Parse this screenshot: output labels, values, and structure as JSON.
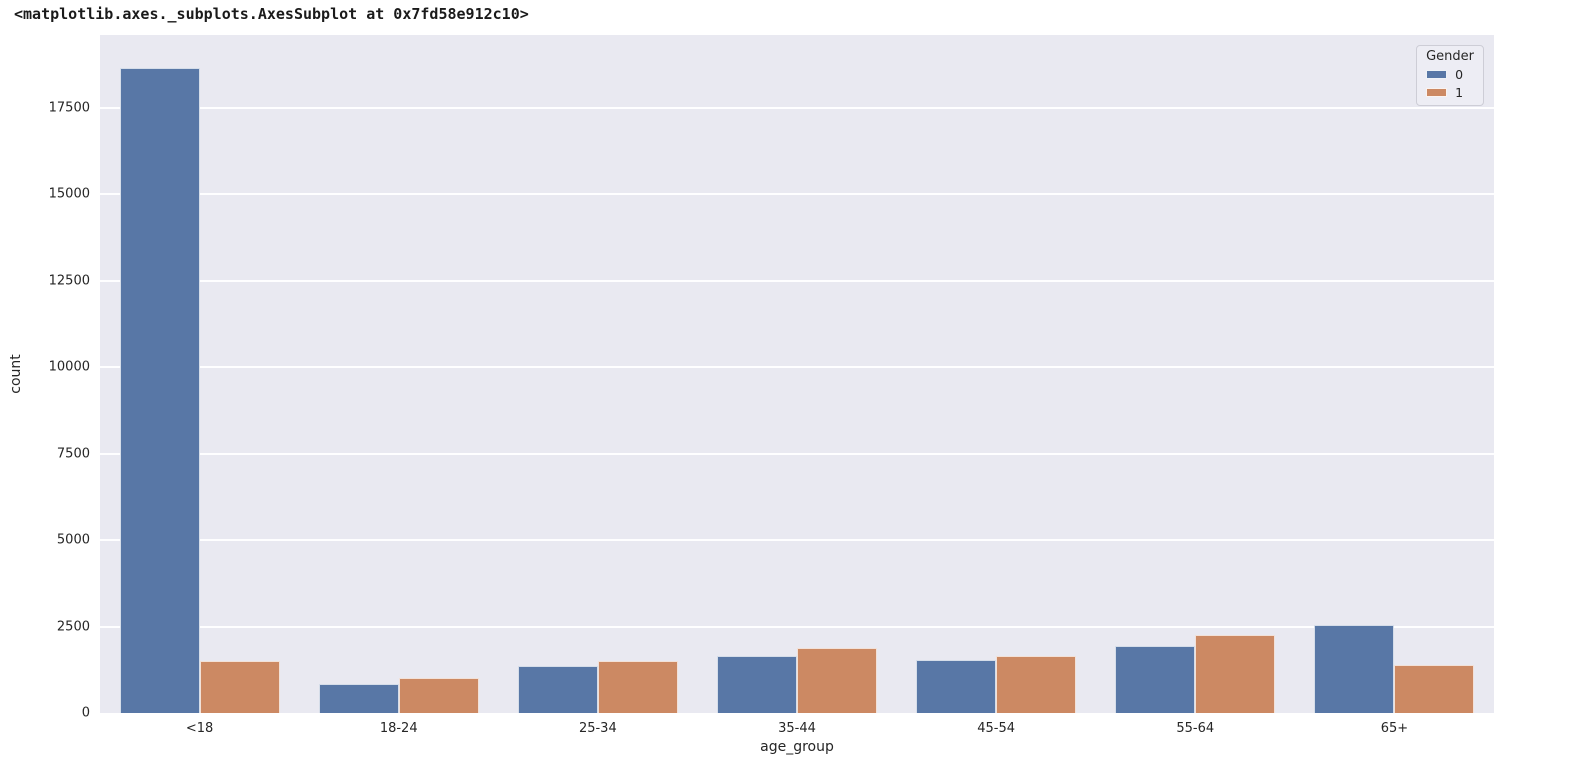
{
  "repr_text": "<matplotlib.axes._subplots.AxesSubplot at 0x7fd58e912c10>",
  "chart_data": {
    "type": "bar",
    "title": "",
    "xlabel": "age_group",
    "ylabel": "count",
    "categories": [
      "<18",
      "18-24",
      "25-34",
      "35-44",
      "45-54",
      "55-64",
      "65+"
    ],
    "series": [
      {
        "name": "0",
        "color": "#5877A6",
        "values": [
          18650,
          840,
          1360,
          1650,
          1530,
          1940,
          2540
        ]
      },
      {
        "name": "1",
        "color": "#CC8963",
        "values": [
          1500,
          1010,
          1500,
          1880,
          1650,
          2250,
          1390
        ]
      }
    ],
    "yticks": [
      0,
      2500,
      5000,
      7500,
      10000,
      12500,
      15000,
      17500
    ],
    "ylim": [
      0,
      19600
    ],
    "grid": "horizontal",
    "plot_bg": "#E9E9F1",
    "legend": {
      "title": "Gender",
      "position": "upper-right",
      "entries": [
        {
          "label": "0",
          "color": "#5877A6"
        },
        {
          "label": "1",
          "color": "#CC8963"
        }
      ]
    }
  }
}
